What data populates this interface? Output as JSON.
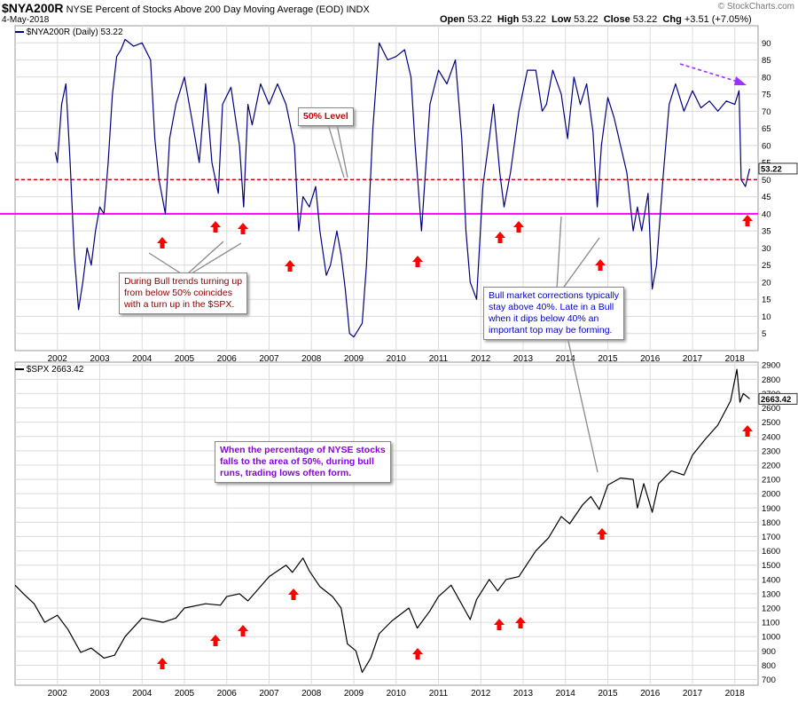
{
  "header": {
    "symbol": "$NYA200R",
    "description": "NYSE Percent of Stocks Above 200 Day Moving Average (EOD)",
    "exchange": "INDX",
    "date": "4-May-2018",
    "watermark": "© StockCharts.com",
    "open_label": "Open",
    "open_value": "53.22",
    "high_label": "High",
    "high_value": "53.22",
    "low_label": "Low",
    "low_value": "53.22",
    "close_label": "Close",
    "close_value": "53.22",
    "chg_label": "Chg",
    "chg_value": "+3.51 (+7.05%)"
  },
  "annotations": {
    "fifty_level": "50% Level",
    "bull_turn": [
      "During Bull trends turning up",
      "from below 50% coincides",
      "with a turn up in the $SPX."
    ],
    "bull_corrections": [
      "Bull market corrections typically",
      "stay above 40%. Late in a Bull",
      "when it dips below 40% an",
      "important top may be forming."
    ],
    "nyse_fifty": [
      "When the percentage of NYSE stocks",
      "falls to the area of 50%, during bull",
      "runs, trading lows often form."
    ]
  },
  "colors": {
    "nya_line": "#000080",
    "spx_line": "#000000",
    "level_50": "#cc0000",
    "level_40": "#ff00ff",
    "arrow": "#ff0000",
    "trend_arrow": "#9b30ff",
    "note_red": "#8b0000",
    "note_blue": "#0000cc",
    "note_purple": "#8a00e6"
  },
  "chart_data": [
    {
      "type": "line",
      "legend": "$NYA200R (Daily) 53.22",
      "last_value": "53.22",
      "x_ticks": [
        "2002",
        "2003",
        "2004",
        "2005",
        "2006",
        "2007",
        "2008",
        "2009",
        "2010",
        "2011",
        "2012",
        "2013",
        "2014",
        "2015",
        "2016",
        "2017",
        "2018"
      ],
      "y_ticks": [
        "5",
        "10",
        "15",
        "20",
        "25",
        "30",
        "35",
        "40",
        "45",
        "50",
        "55",
        "60",
        "65",
        "70",
        "75",
        "80",
        "85",
        "90"
      ],
      "ylim": [
        0,
        95
      ],
      "xlim": [
        2001.0,
        2018.55
      ],
      "grid": true,
      "reference_lines": [
        {
          "value": 50,
          "style": "dashed"
        },
        {
          "value": 40,
          "style": "solid"
        }
      ],
      "x": [
        2001.95,
        2002.0,
        2002.1,
        2002.2,
        2002.3,
        2002.4,
        2002.5,
        2002.6,
        2002.7,
        2002.8,
        2002.9,
        2003.0,
        2003.1,
        2003.2,
        2003.3,
        2003.4,
        2003.5,
        2003.6,
        2003.8,
        2004.0,
        2004.2,
        2004.3,
        2004.4,
        2004.55,
        2004.65,
        2004.8,
        2005.0,
        2005.2,
        2005.35,
        2005.5,
        2005.65,
        2005.8,
        2005.9,
        2006.1,
        2006.3,
        2006.4,
        2006.5,
        2006.6,
        2006.8,
        2007.0,
        2007.2,
        2007.4,
        2007.6,
        2007.7,
        2007.8,
        2007.95,
        2008.1,
        2008.2,
        2008.35,
        2008.45,
        2008.6,
        2008.7,
        2008.8,
        2008.9,
        2009.0,
        2009.1,
        2009.2,
        2009.3,
        2009.45,
        2009.6,
        2009.8,
        2010.0,
        2010.2,
        2010.35,
        2010.45,
        2010.6,
        2010.8,
        2011.0,
        2011.2,
        2011.4,
        2011.55,
        2011.65,
        2011.75,
        2011.9,
        2012.05,
        2012.2,
        2012.3,
        2012.45,
        2012.55,
        2012.7,
        2012.9,
        2013.1,
        2013.3,
        2013.45,
        2013.55,
        2013.7,
        2013.9,
        2014.05,
        2014.2,
        2014.35,
        2014.5,
        2014.65,
        2014.75,
        2014.85,
        2015.0,
        2015.15,
        2015.3,
        2015.45,
        2015.6,
        2015.7,
        2015.8,
        2015.95,
        2016.05,
        2016.15,
        2016.3,
        2016.45,
        2016.6,
        2016.8,
        2017.0,
        2017.2,
        2017.4,
        2017.6,
        2017.8,
        2018.0,
        2018.1,
        2018.15,
        2018.25,
        2018.35
      ],
      "y": [
        58,
        55,
        72,
        78,
        55,
        28,
        12,
        20,
        30,
        25,
        35,
        42,
        40,
        55,
        75,
        86,
        88,
        91,
        89,
        90,
        85,
        62,
        50,
        40,
        62,
        72,
        80,
        66,
        55,
        78,
        55,
        46,
        72,
        77,
        60,
        42,
        72,
        66,
        78,
        72,
        78,
        72,
        60,
        35,
        45,
        42,
        48,
        35,
        22,
        25,
        35,
        28,
        18,
        5,
        4,
        6,
        8,
        25,
        65,
        90,
        85,
        86,
        88,
        80,
        60,
        35,
        72,
        82,
        78,
        85,
        62,
        35,
        20,
        15,
        48,
        62,
        72,
        52,
        42,
        52,
        70,
        82,
        82,
        70,
        72,
        82,
        75,
        62,
        80,
        72,
        78,
        64,
        42,
        60,
        74,
        68,
        60,
        52,
        35,
        42,
        35,
        46,
        18,
        25,
        50,
        72,
        78,
        70,
        76,
        71,
        73,
        70,
        73,
        72,
        76,
        50,
        48,
        53.22
      ]
    },
    {
      "type": "line",
      "legend": "$SPX 2663.42",
      "last_value": "2663.42",
      "x_ticks": [
        "2002",
        "2003",
        "2004",
        "2005",
        "2006",
        "2007",
        "2008",
        "2009",
        "2010",
        "2011",
        "2012",
        "2013",
        "2014",
        "2015",
        "2016",
        "2017",
        "2018"
      ],
      "y_ticks": [
        "700",
        "800",
        "900",
        "1000",
        "1100",
        "1200",
        "1300",
        "1400",
        "1500",
        "1600",
        "1700",
        "1800",
        "1900",
        "2000",
        "2100",
        "2200",
        "2300",
        "2400",
        "2500",
        "2600",
        "2700",
        "2800",
        "2900"
      ],
      "ylim": [
        660,
        2920
      ],
      "xlim": [
        2001.0,
        2018.55
      ],
      "grid": true,
      "x": [
        2001.0,
        2001.2,
        2001.45,
        2001.7,
        2002.0,
        2002.25,
        2002.55,
        2002.8,
        2003.1,
        2003.35,
        2003.6,
        2004.0,
        2004.5,
        2004.8,
        2005.0,
        2005.5,
        2005.85,
        2006.0,
        2006.3,
        2006.5,
        2007.0,
        2007.4,
        2007.55,
        2007.8,
        2007.95,
        2008.2,
        2008.5,
        2008.7,
        2008.85,
        2009.05,
        2009.2,
        2009.4,
        2009.6,
        2009.9,
        2010.3,
        2010.5,
        2010.8,
        2011.0,
        2011.3,
        2011.6,
        2011.75,
        2011.9,
        2012.2,
        2012.4,
        2012.6,
        2012.9,
        2013.3,
        2013.6,
        2013.9,
        2014.1,
        2014.4,
        2014.6,
        2014.8,
        2015.0,
        2015.3,
        2015.6,
        2015.7,
        2015.85,
        2016.05,
        2016.2,
        2016.5,
        2016.8,
        2017.0,
        2017.3,
        2017.6,
        2017.9,
        2018.05,
        2018.12,
        2018.2,
        2018.35
      ],
      "y": [
        1360,
        1300,
        1230,
        1100,
        1150,
        1050,
        890,
        920,
        850,
        870,
        1000,
        1130,
        1100,
        1130,
        1200,
        1230,
        1220,
        1280,
        1300,
        1250,
        1420,
        1500,
        1450,
        1550,
        1460,
        1350,
        1280,
        1200,
        950,
        900,
        750,
        850,
        1020,
        1110,
        1200,
        1060,
        1180,
        1280,
        1360,
        1200,
        1120,
        1260,
        1400,
        1320,
        1400,
        1420,
        1600,
        1690,
        1840,
        1790,
        1920,
        1980,
        1890,
        2060,
        2110,
        2100,
        1900,
        2070,
        1870,
        2070,
        2160,
        2130,
        2270,
        2380,
        2480,
        2650,
        2870,
        2640,
        2700,
        2663.42
      ]
    }
  ]
}
